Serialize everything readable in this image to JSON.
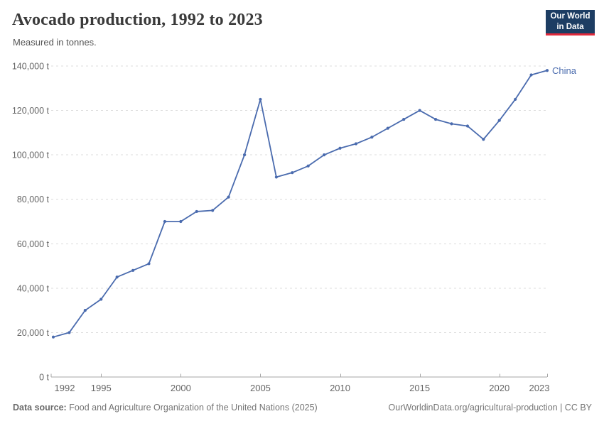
{
  "header": {
    "title": "Avocado production, 1992 to 2023",
    "subtitle": "Measured in tonnes."
  },
  "logo": {
    "line1": "Our World",
    "line2": "in Data"
  },
  "chart_data": {
    "type": "line",
    "title": "Avocado production, 1992 to 2023",
    "subtitle": "Measured in tonnes.",
    "unit_suffix": " t",
    "xlabel": "",
    "ylabel": "",
    "ylim": [
      0,
      140000
    ],
    "ytick_step": 20000,
    "xticks": [
      1992,
      1995,
      2000,
      2005,
      2010,
      2015,
      2020,
      2023
    ],
    "grid": "horizontal-dashed",
    "legend_position": "end-of-line",
    "x": [
      1992,
      1993,
      1994,
      1995,
      1996,
      1997,
      1998,
      1999,
      2000,
      2001,
      2002,
      2003,
      2004,
      2005,
      2006,
      2007,
      2008,
      2009,
      2010,
      2011,
      2012,
      2013,
      2014,
      2015,
      2016,
      2017,
      2018,
      2019,
      2020,
      2021,
      2022,
      2023
    ],
    "series": [
      {
        "name": "China",
        "color": "#4a6bae",
        "values": [
          18000,
          20000,
          30000,
          35000,
          45000,
          48000,
          51000,
          70000,
          70000,
          74500,
          75000,
          81000,
          100000,
          125000,
          90000,
          92000,
          95000,
          100000,
          103000,
          105000,
          108000,
          112000,
          116000,
          120000,
          116000,
          114000,
          113000,
          107000,
          115500,
          125000,
          136000,
          138000
        ]
      }
    ]
  },
  "footer": {
    "source_label": "Data source:",
    "source_text": " Food and Agriculture Organization of the United Nations (2025)",
    "link_text": "OurWorldinData.org/agricultural-production | CC BY"
  },
  "colors": {
    "series_blue": "#4a6bae",
    "logo_navy": "#1d3d63",
    "logo_red": "#e0293b",
    "gridline": "#dcdcdc",
    "axis_line": "#a5a5a5",
    "tick_label": "#666666",
    "title_text": "#3a3a3a",
    "subtitle_text": "#555555",
    "footer_text": "#757575"
  }
}
